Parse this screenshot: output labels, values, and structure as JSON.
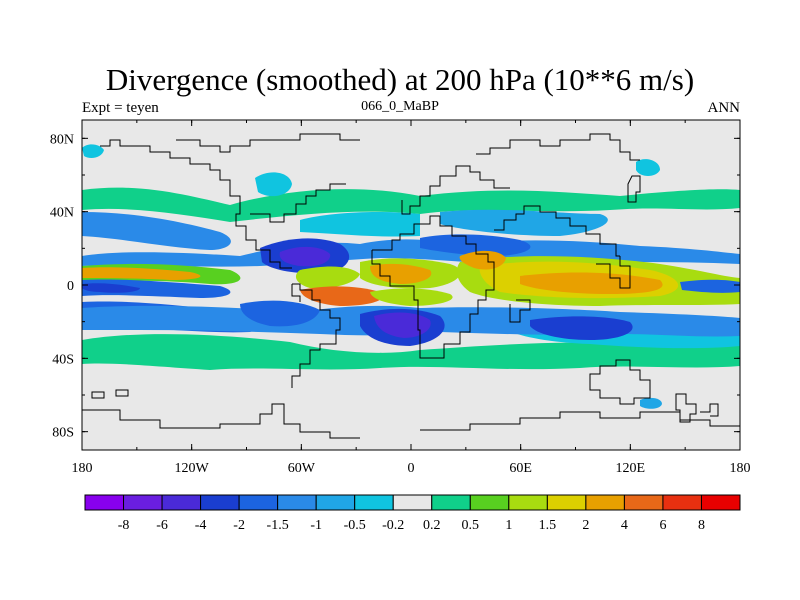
{
  "chart_data": {
    "type": "heatmap",
    "title": "Divergence (smoothed) at 200 hPa (10**6 m/s)",
    "subtitle_left": "Expt = teyen",
    "subtitle_center": "066_0_MaBP",
    "subtitle_right": "ANN",
    "x_ticks": [
      "180",
      "120W",
      "60W",
      "0",
      "60E",
      "120E",
      "180"
    ],
    "y_ticks": [
      "80N",
      "40N",
      "0",
      "40S",
      "80S"
    ],
    "xlim": [
      -180,
      180
    ],
    "ylim": [
      -90,
      90
    ],
    "colorbar": {
      "levels": [
        "-8",
        "-6",
        "-4",
        "-2",
        "-1.5",
        "-1",
        "-0.5",
        "-0.2",
        "0.2",
        "0.5",
        "1",
        "1.5",
        "2",
        "4",
        "6",
        "8"
      ],
      "colors": [
        "#8800ee",
        "#6a1ee0",
        "#4a2ad8",
        "#1a3ed0",
        "#1c64e0",
        "#2a8ae8",
        "#20a6e6",
        "#10c4e0",
        "#e8e8e8",
        "#10d08a",
        "#58d020",
        "#a8dc10",
        "#dcd000",
        "#e8a000",
        "#e86818",
        "#e83010",
        "#e80000"
      ]
    }
  }
}
